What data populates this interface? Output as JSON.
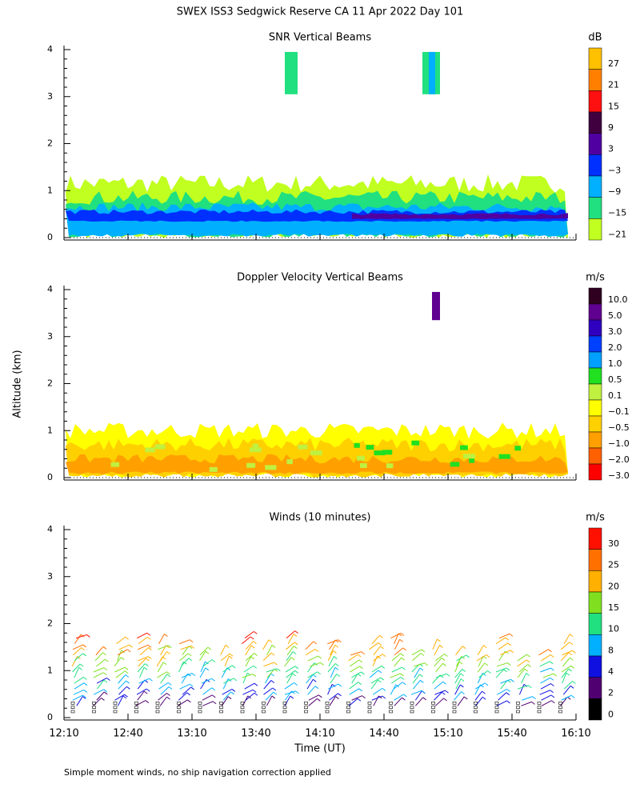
{
  "title": "SWEX ISS3 Sedgwick Reserve CA  11 Apr 2022 Day 101",
  "y_label": "Altitude (km)",
  "x_label": "Time (UT)",
  "footnote": "Simple moment winds, no ship navigation correction applied",
  "x_ticks": [
    "12:10",
    "12:40",
    "13:10",
    "13:40",
    "14:10",
    "14:40",
    "15:10",
    "15:40",
    "16:10"
  ],
  "y_ticks": [
    "0",
    "1",
    "2",
    "3",
    "4"
  ],
  "panels": [
    {
      "title": "SNR Vertical Beams",
      "unit": "dB",
      "colorbar": [
        {
          "label": "27",
          "color": "#ffc000"
        },
        {
          "label": "21",
          "color": "#ff8000"
        },
        {
          "label": "15",
          "color": "#ff1010"
        },
        {
          "label": "9",
          "color": "#400040"
        },
        {
          "label": "3",
          "color": "#5000a0"
        },
        {
          "label": "−3",
          "color": "#0030ff"
        },
        {
          "label": "−9",
          "color": "#00b0ff"
        },
        {
          "label": "−15",
          "color": "#20e080"
        },
        {
          "label": "−21",
          "color": "#c0ff20"
        }
      ]
    },
    {
      "title": "Doppler Velocity Vertical Beams",
      "unit": "m/s",
      "colorbar": [
        {
          "label": "10.0",
          "color": "#300020"
        },
        {
          "label": "5.0",
          "color": "#600090"
        },
        {
          "label": "3.0",
          "color": "#3000c0"
        },
        {
          "label": "2.0",
          "color": "#0040ff"
        },
        {
          "label": "1.0",
          "color": "#00a0ff"
        },
        {
          "label": "0.5",
          "color": "#20e020"
        },
        {
          "label": "0.1",
          "color": "#c0f040"
        },
        {
          "label": "−0.1",
          "color": "#ffff00"
        },
        {
          "label": "−0.5",
          "color": "#ffd000"
        },
        {
          "label": "−1.0",
          "color": "#ffa000"
        },
        {
          "label": "−2.0",
          "color": "#ff6000"
        },
        {
          "label": "−3.0",
          "color": "#ff0000"
        }
      ]
    },
    {
      "title": "Winds (10 minutes)",
      "unit": "m/s",
      "colorbar": [
        {
          "label": "30",
          "color": "#ff1000"
        },
        {
          "label": "25",
          "color": "#ff7000"
        },
        {
          "label": "20",
          "color": "#ffb000"
        },
        {
          "label": "15",
          "color": "#80e020"
        },
        {
          "label": "10",
          "color": "#20e080"
        },
        {
          "label": "8",
          "color": "#00b0ff"
        },
        {
          "label": "4",
          "color": "#1010e0"
        },
        {
          "label": "2",
          "color": "#500070"
        },
        {
          "label": "0",
          "color": "#000000"
        }
      ]
    }
  ]
}
